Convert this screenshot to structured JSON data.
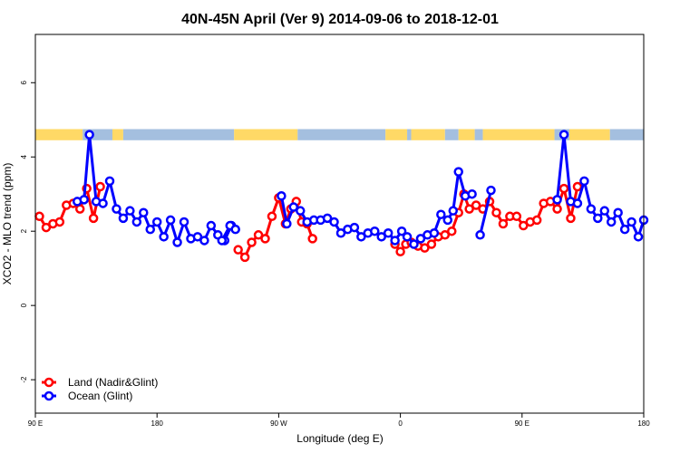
{
  "chart_data": {
    "type": "line",
    "title": "40N-45N April (Ver 9)   2014-09-06 to 2018-12-01",
    "xlabel": "Longitude (deg E)",
    "ylabel": "XCO2 - MLO trend (ppm)",
    "xlim": [
      90,
      540
    ],
    "ylim": [
      -2.9,
      7.3
    ],
    "x_ticks": [
      {
        "value": 90,
        "label": "90 E"
      },
      {
        "value": 180,
        "label": "180"
      },
      {
        "value": 270,
        "label": "90 W"
      },
      {
        "value": 360,
        "label": "0"
      },
      {
        "value": 450,
        "label": "90 E"
      },
      {
        "value": 540,
        "label": "180"
      }
    ],
    "y_ticks": [
      {
        "value": -2,
        "label": "-2"
      },
      {
        "value": 0,
        "label": "0"
      },
      {
        "value": 2,
        "label": "2"
      },
      {
        "value": 4,
        "label": "4"
      },
      {
        "value": 6,
        "label": "6"
      }
    ],
    "land_band": {
      "y_bottom": 4.45,
      "y_top": 4.75,
      "land_color": "#FFD966",
      "ocean_color": "#A4BFDF",
      "segments": [
        [
          90,
          125,
          "land"
        ],
        [
          125,
          147,
          "ocean"
        ],
        [
          147,
          155,
          "land"
        ],
        [
          155,
          237,
          "ocean"
        ],
        [
          237,
          284,
          "land"
        ],
        [
          284,
          349,
          "ocean"
        ],
        [
          349,
          365,
          "land"
        ],
        [
          365,
          368,
          "ocean"
        ],
        [
          368,
          393,
          "land"
        ],
        [
          393,
          403,
          "ocean"
        ],
        [
          403,
          415,
          "land"
        ],
        [
          415,
          421,
          "ocean"
        ],
        [
          421,
          474,
          "land"
        ],
        [
          474,
          485,
          "ocean"
        ],
        [
          485,
          515,
          "land"
        ],
        [
          515,
          540,
          "ocean"
        ]
      ]
    },
    "legend": {
      "position": "bottom-left",
      "entries": [
        "Land (Nadir&Glint)",
        "Ocean (Glint)"
      ]
    },
    "series": [
      {
        "name": "Land (Nadir&Glint)",
        "color": "#FF0000",
        "segments": [
          {
            "x": [
              93,
              98,
              103,
              108,
              113,
              118,
              123,
              128,
              133,
              138
            ],
            "y": [
              2.4,
              2.1,
              2.2,
              2.25,
              2.7,
              2.75,
              2.6,
              3.15,
              2.35,
              3.2
            ]
          },
          {
            "x": [
              240,
              245,
              250,
              255,
              260,
              265,
              270,
              275,
              279,
              283,
              287,
              291,
              295
            ],
            "y": [
              1.5,
              1.3,
              1.7,
              1.9,
              1.8,
              2.4,
              2.9,
              2.2,
              2.6,
              2.8,
              2.25,
              2.2,
              1.8
            ]
          },
          {
            "x": [
              356,
              360,
              364,
              368,
              373,
              378,
              383,
              388,
              393,
              398,
              403,
              407,
              411,
              416,
              421,
              426,
              431,
              436,
              441,
              446,
              451,
              456,
              461,
              466,
              471,
              476,
              481,
              486,
              491
            ],
            "y": [
              1.65,
              1.45,
              1.65,
              1.7,
              1.6,
              1.55,
              1.65,
              1.85,
              1.9,
              2.0,
              2.5,
              3.0,
              2.6,
              2.7,
              2.6,
              2.8,
              2.5,
              2.2,
              2.4,
              2.4,
              2.15,
              2.25,
              2.3,
              2.75,
              2.8,
              2.6,
              3.15,
              2.35,
              3.2
            ]
          }
        ]
      },
      {
        "name": "Ocean (Glint)",
        "color": "#0000FF",
        "segments": [
          {
            "x": [
              121,
              126,
              130,
              135,
              140,
              145,
              150,
              155,
              160,
              165,
              170,
              175,
              180,
              185,
              190,
              195,
              200,
              205,
              210,
              215,
              220,
              225,
              230,
              235
            ],
            "y": [
              2.8,
              2.85,
              4.6,
              2.8,
              2.75,
              3.35,
              2.6,
              2.35,
              2.55,
              2.25,
              2.5,
              2.05,
              2.25,
              1.85,
              2.3,
              1.7,
              2.25,
              1.8,
              1.85,
              1.75,
              2.15,
              1.9,
              1.75,
              2.15
            ]
          },
          {
            "x": [
              228,
              234,
              238
            ],
            "y": [
              1.75,
              2.15,
              2.05
            ]
          },
          {
            "x": [
              272,
              276,
              281,
              286,
              291,
              296,
              301,
              306,
              311,
              316,
              321,
              326,
              331,
              336,
              341,
              346,
              351,
              356,
              361,
              365,
              370,
              375,
              380,
              385,
              390,
              395,
              399,
              403,
              408,
              413
            ],
            "y": [
              2.95,
              2.2,
              2.65,
              2.55,
              2.25,
              2.3,
              2.3,
              2.35,
              2.25,
              1.95,
              2.05,
              2.1,
              1.85,
              1.95,
              2.0,
              1.85,
              1.95,
              1.75,
              2.0,
              1.85,
              1.65,
              1.8,
              1.9,
              1.95,
              2.45,
              2.3,
              2.55,
              3.6,
              2.95,
              3.0
            ]
          },
          {
            "x": [
              419,
              427
            ],
            "y": [
              1.9,
              3.1
            ]
          },
          {
            "x": [
              476,
              481,
              486,
              491,
              496,
              501,
              506,
              511,
              516,
              521,
              526,
              531,
              536,
              540
            ],
            "y": [
              2.85,
              4.6,
              2.8,
              2.75,
              3.35,
              2.6,
              2.35,
              2.55,
              2.25,
              2.5,
              2.05,
              2.25,
              1.85,
              2.3
            ]
          }
        ]
      }
    ]
  }
}
